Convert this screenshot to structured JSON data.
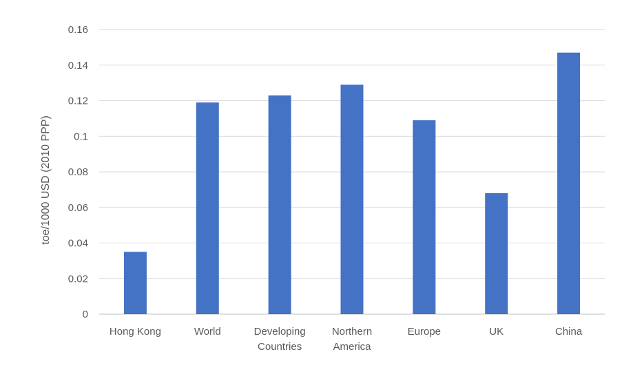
{
  "chart_data": {
    "type": "bar",
    "categories": [
      [
        "Hong Kong"
      ],
      [
        "World"
      ],
      [
        "Developing",
        "Countries"
      ],
      [
        "Northern",
        "America"
      ],
      [
        "Europe"
      ],
      [
        "UK"
      ],
      [
        "China"
      ]
    ],
    "values": [
      0.035,
      0.119,
      0.123,
      0.129,
      0.109,
      0.068,
      0.147
    ],
    "ylabel": "toe/1000 USD (2010 PPP)",
    "ylim": [
      0,
      0.16
    ],
    "yticks": [
      "0",
      "0.02",
      "0.04",
      "0.06",
      "0.08",
      "0.1",
      "0.12",
      "0.14",
      "0.16"
    ],
    "bar_color": "#4472C4",
    "grid": true
  }
}
